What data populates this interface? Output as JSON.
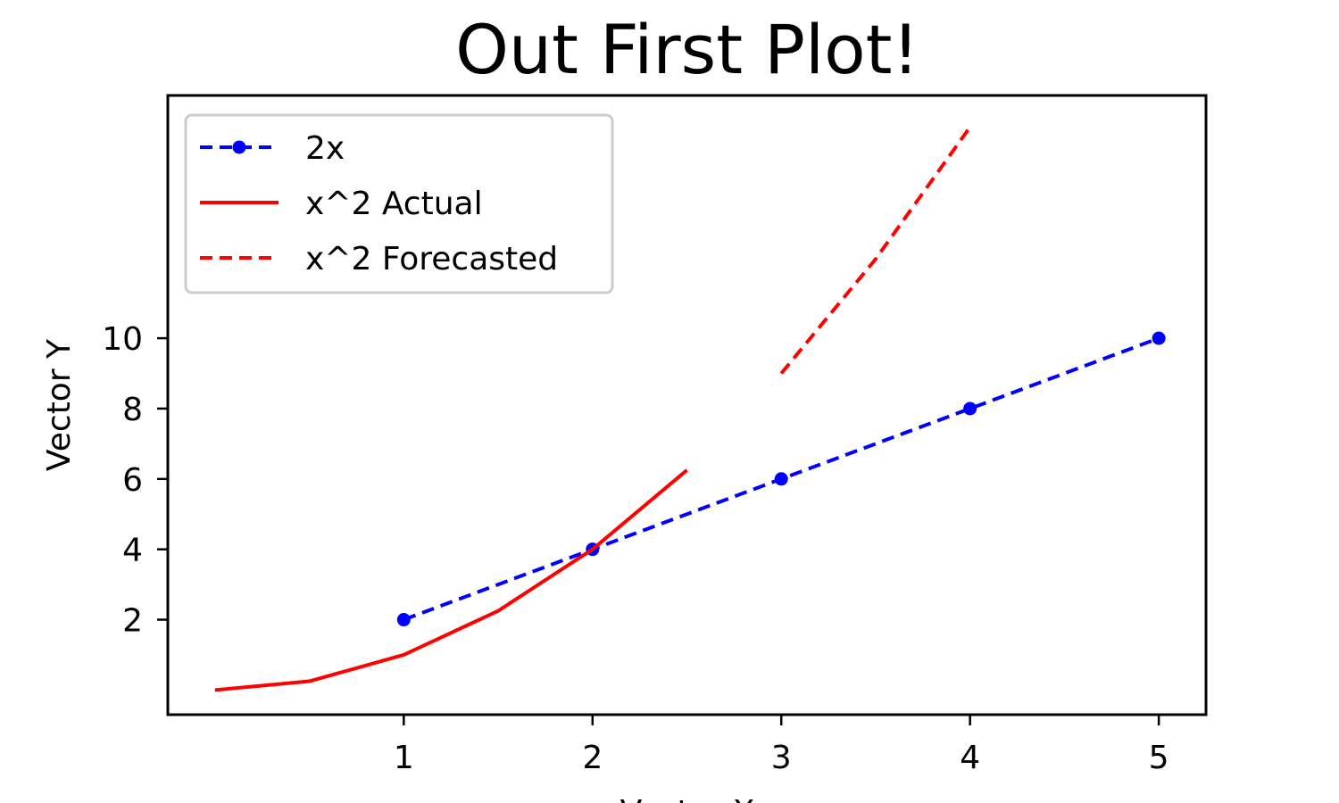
{
  "chart_data": {
    "type": "line",
    "title": "Out First Plot!",
    "xlabel": "Vector X",
    "ylabel": "Vector Y",
    "xlim": [
      -0.25,
      5.25
    ],
    "ylim": [
      -0.7,
      16.9
    ],
    "xticks": [
      1,
      2,
      3,
      4,
      5
    ],
    "yticks": [
      2,
      4,
      6,
      8,
      10
    ],
    "grid": false,
    "legend_position": "top-left",
    "series": [
      {
        "name": "2x",
        "color": "#0000ff",
        "style": "dashed",
        "marker": "dot",
        "x": [
          1,
          2,
          3,
          4,
          5
        ],
        "y": [
          2,
          4,
          6,
          8,
          10
        ]
      },
      {
        "name": "x^2 Actual",
        "color": "#ff0000",
        "style": "solid",
        "marker": "none",
        "x": [
          0,
          0.5,
          1,
          1.5,
          2,
          2.5
        ],
        "y": [
          0,
          0.25,
          1,
          2.25,
          4,
          6.25
        ]
      },
      {
        "name": "x^2 Forecasted",
        "color": "#ff0000",
        "style": "dashed",
        "marker": "none",
        "x": [
          3,
          3.5,
          4
        ],
        "y": [
          9,
          12.25,
          16
        ]
      }
    ]
  }
}
